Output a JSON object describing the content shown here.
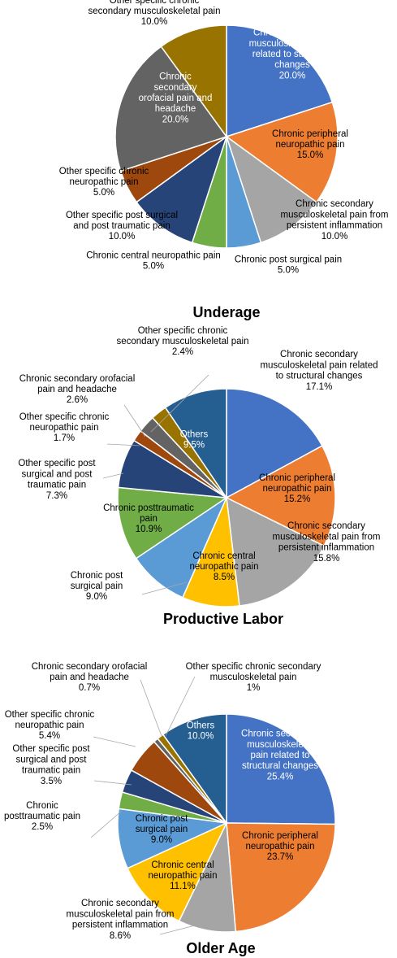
{
  "chart_data": [
    {
      "type": "pie",
      "title": "Underage",
      "slices": [
        {
          "name": "Chronic secondary musculoskeletal pain related to structural changes",
          "value": 20.0,
          "value_label": "20.0%",
          "color": "#4472C4",
          "label_lines": [
            "Chronic secondary",
            "musculoskeletal pain",
            "related to structural",
            "changes",
            "20.0%"
          ],
          "label_color": "#ffffff"
        },
        {
          "name": "Chronic peripheral neuropathic pain",
          "value": 15.0,
          "value_label": "15.0%",
          "color": "#ED7D31",
          "label_lines": [
            "Chronic peripheral",
            "neuropathic pain",
            "15.0%"
          ],
          "label_color": "#000000"
        },
        {
          "name": "Chronic secondary musculoskeletal pain from persistent inflammation",
          "value": 10.0,
          "value_label": "10.0%",
          "color": "#A5A5A5",
          "label_lines": [
            "Chronic secondary",
            "musculoskeletal pain from",
            "persistent inflammation",
            "10.0%"
          ],
          "label_color": "#000000"
        },
        {
          "name": "Chronic post surgical pain",
          "value": 5.0,
          "value_label": "5.0%",
          "color": "#5B9BD5",
          "label_lines": [
            "Chronic post surgical pain",
            "5.0%"
          ],
          "label_color": "#000000"
        },
        {
          "name": "Chronic central neuropathic pain",
          "value": 5.0,
          "value_label": "5.0%",
          "color": "#70AD47",
          "label_lines": [
            "Chronic central neuropathic pain",
            "5.0%"
          ],
          "label_color": "#000000"
        },
        {
          "name": "Other specific post surgical and post traumatic pain",
          "value": 10.0,
          "value_label": "10.0%",
          "color": "#264478",
          "label_lines": [
            "Other specific post surgical",
            "and post traumatic pain",
            "10.0%"
          ],
          "label_color": "#000000"
        },
        {
          "name": "Other specific chronic neuropathic pain",
          "value": 5.0,
          "value_label": "5.0%",
          "color": "#9E480E",
          "label_lines": [
            "Other specific chronic",
            "neuropathic pain",
            "5.0%"
          ],
          "label_color": "#000000"
        },
        {
          "name": "Chronic secondary orofacial pain and headache",
          "value": 20.0,
          "value_label": "20.0%",
          "color": "#636363",
          "label_lines": [
            "Chronic",
            "secondary",
            "orofacial pain and",
            "headache",
            "20.0%"
          ],
          "label_color": "#ffffff"
        },
        {
          "name": "Other specific chronic secondary musculoskeletal pain",
          "value": 10.0,
          "value_label": "10.0%",
          "color": "#997300",
          "label_lines": [
            "Other specific chronic",
            "secondary musculoskeletal pain",
            "10.0%"
          ],
          "label_color": "#000000"
        }
      ]
    },
    {
      "type": "pie",
      "title": "Productive Labor",
      "slices": [
        {
          "name": "Chronic secondary musculoskeletal pain related to structural changes",
          "value": 17.1,
          "value_label": "17.1%",
          "color": "#4472C4",
          "label_lines": [
            "Chronic secondary",
            "musculoskeletal pain related",
            "to structural changes",
            "17.1%"
          ],
          "label_color": "#000000"
        },
        {
          "name": "Chronic peripheral neuropathic pain",
          "value": 15.2,
          "value_label": "15.2%",
          "color": "#ED7D31",
          "label_lines": [
            "Chronic peripheral",
            "neuropathic pain",
            "15.2%"
          ],
          "label_color": "#000000"
        },
        {
          "name": "Chronic secondary musculoskeletal pain from persistent inflammation",
          "value": 15.8,
          "value_label": "15.8%",
          "color": "#A5A5A5",
          "label_lines": [
            "Chronic secondary",
            "musculoskeletal pain from",
            "persistent inflammation",
            "15.8%"
          ],
          "label_color": "#000000"
        },
        {
          "name": "Chronic central neuropathic pain",
          "value": 8.5,
          "value_label": "8.5%",
          "color": "#FFC000",
          "label_lines": [
            "Chronic central",
            "neuropathic pain",
            "8.5%"
          ],
          "label_color": "#000000"
        },
        {
          "name": "Chronic post surgical pain",
          "value": 9.0,
          "value_label": "9.0%",
          "color": "#5B9BD5",
          "label_lines": [
            "Chronic post",
            "surgical pain",
            "9.0%"
          ],
          "label_color": "#000000"
        },
        {
          "name": "Chronic posttraumatic pain",
          "value": 10.9,
          "value_label": "10.9%",
          "color": "#70AD47",
          "label_lines": [
            "Chronic posttraumatic",
            "pain",
            "10.9%"
          ],
          "label_color": "#000000"
        },
        {
          "name": "Other specific post surgical and post traumatic pain",
          "value": 7.3,
          "value_label": "7.3%",
          "color": "#264478",
          "label_lines": [
            "Other specific post",
            "surgical and post",
            "traumatic pain",
            "7.3%"
          ],
          "label_color": "#000000"
        },
        {
          "name": "Other specific chronic neuropathic pain",
          "value": 1.7,
          "value_label": "1.7%",
          "color": "#9E480E",
          "label_lines": [
            "Other specific chronic",
            "neuropathic pain",
            "1.7%"
          ],
          "label_color": "#000000"
        },
        {
          "name": "Chronic secondary orofacial pain and headache",
          "value": 2.6,
          "value_label": "2.6%",
          "color": "#636363",
          "label_lines": [
            "Chronic secondary orofacial",
            "pain and headache",
            "2.6%"
          ],
          "label_color": "#000000"
        },
        {
          "name": "Other specific chronic secondary musculoskeletal pain",
          "value": 2.4,
          "value_label": "2.4%",
          "color": "#997300",
          "label_lines": [
            "Other specific chronic",
            "secondary musculoskeletal pain",
            "2.4%"
          ],
          "label_color": "#000000"
        },
        {
          "name": "Others",
          "value": 9.5,
          "value_label": "9.5%",
          "color": "#255E91",
          "label_lines": [
            "Others",
            "9.5%"
          ],
          "label_color": "#ffffff"
        }
      ]
    },
    {
      "type": "pie",
      "title": "Older Age",
      "slices": [
        {
          "name": "Chronic secondary musculoskeletal pain related to structural changes",
          "value": 25.4,
          "value_label": "25.4%",
          "color": "#4472C4",
          "label_lines": [
            "Chronic secondary",
            "musculoskeletal",
            "pain related to",
            "structural changes",
            "25.4%"
          ],
          "label_color": "#ffffff"
        },
        {
          "name": "Chronic peripheral neuropathic pain",
          "value": 23.7,
          "value_label": "23.7%",
          "color": "#ED7D31",
          "label_lines": [
            "Chronic peripheral",
            "neuropathic pain",
            "23.7%"
          ],
          "label_color": "#000000"
        },
        {
          "name": "Chronic secondary musculoskeletal pain from persistent inflammation",
          "value": 8.6,
          "value_label": "8.6%",
          "color": "#A5A5A5",
          "label_lines": [
            "Chronic secondary",
            "musculoskeletal pain from",
            "persistent inflammation",
            "8.6%"
          ],
          "label_color": "#000000"
        },
        {
          "name": "Chronic central neuropathic pain",
          "value": 11.1,
          "value_label": "11.1%",
          "color": "#FFC000",
          "label_lines": [
            "Chronic central",
            "neuropathic pain",
            "11.1%"
          ],
          "label_color": "#000000"
        },
        {
          "name": "Chronic post surgical pain",
          "value": 9.0,
          "value_label": "9.0%",
          "color": "#5B9BD5",
          "label_lines": [
            "Chronic post",
            "surgical pain",
            "9.0%"
          ],
          "label_color": "#000000"
        },
        {
          "name": "Chronic posttraumatic pain",
          "value": 2.5,
          "value_label": "2.5%",
          "color": "#70AD47",
          "label_lines": [
            "Chronic",
            "posttraumatic pain",
            "2.5%"
          ],
          "label_color": "#000000"
        },
        {
          "name": "Other specific post surgical and post traumatic pain",
          "value": 3.5,
          "value_label": "3.5%",
          "color": "#264478",
          "label_lines": [
            "Other specific post",
            "surgical and post",
            "traumatic pain",
            "3.5%"
          ],
          "label_color": "#000000"
        },
        {
          "name": "Other specific chronic neuropathic pain",
          "value": 5.4,
          "value_label": "5.4%",
          "color": "#9E480E",
          "label_lines": [
            "Other specific chronic",
            "neuropathic pain",
            "5.4%"
          ],
          "label_color": "#000000"
        },
        {
          "name": "Chronic secondary orofacial pain and headache",
          "value": 0.7,
          "value_label": "0.7%",
          "color": "#636363",
          "label_lines": [
            "Chronic secondary orofacial",
            "pain and headache",
            "0.7%"
          ],
          "label_color": "#000000"
        },
        {
          "name": "Other specific chronic secondary musculoskeletal pain",
          "value": 1.0,
          "value_label": "1%",
          "color": "#997300",
          "label_lines": [
            "Other specific chronic secondary",
            "musculoskeletal pain",
            "1%"
          ],
          "label_color": "#000000"
        },
        {
          "name": "Others",
          "value": 10.0,
          "value_label": "10.0%",
          "color": "#255E91",
          "label_lines": [
            "Others",
            "10.0%"
          ],
          "label_color": "#ffffff"
        }
      ]
    }
  ]
}
